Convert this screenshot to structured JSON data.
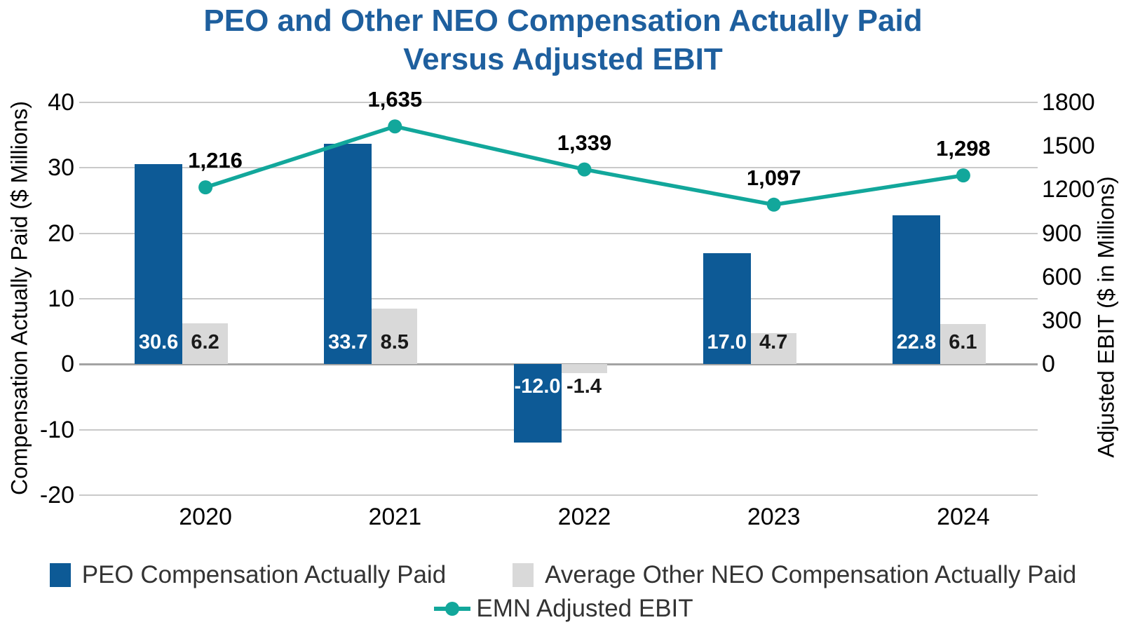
{
  "title": {
    "line1": "PEO and Other NEO Compensation Actually Paid",
    "line2": "Versus Adjusted EBIT"
  },
  "chart_data": {
    "type": "combo-bar-line",
    "categories": [
      "2020",
      "2021",
      "2022",
      "2023",
      "2024"
    ],
    "series": [
      {
        "name": "PEO Compensation Actually Paid",
        "type": "bar",
        "axis": "left",
        "color": "#0D5A96",
        "label_color": "#FFFFFF",
        "values": [
          30.6,
          33.7,
          -12.0,
          17.0,
          22.8
        ],
        "labels": [
          "30.6",
          "33.7",
          "-12.0",
          "17.0",
          "22.8"
        ]
      },
      {
        "name": "Average Other NEO Compensation Actually Paid",
        "type": "bar",
        "axis": "left",
        "color": "#D9D9D9",
        "label_color": "#1A1A1A",
        "values": [
          6.2,
          8.5,
          -1.4,
          4.7,
          6.1
        ],
        "labels": [
          "6.2",
          "8.5",
          "-1.4",
          "4.7",
          "6.1"
        ]
      },
      {
        "name": "EMN Adjusted EBIT",
        "type": "line",
        "axis": "right",
        "color": "#12A79B",
        "values": [
          1216,
          1635,
          1339,
          1097,
          1298
        ],
        "labels": [
          "1,216",
          "1,635",
          "1,339",
          "1,097",
          "1,298"
        ]
      }
    ],
    "left_axis": {
      "label": "Compensation Actually Paid ($ Millions)",
      "tick_values": [
        40,
        30,
        20,
        10,
        0,
        -10,
        -20
      ],
      "ticks": [
        "40",
        "30",
        "20",
        "10",
        "0",
        "-10",
        "-20"
      ],
      "ylim": [
        -20,
        40
      ]
    },
    "right_axis": {
      "label": "Adjusted EBIT ($ in Millions)",
      "tick_values": [
        1800,
        1500,
        1200,
        900,
        600,
        300,
        0
      ],
      "ticks": [
        "1800",
        "1500",
        "1200",
        "900",
        "600",
        "300",
        "0"
      ],
      "ylim": [
        0,
        1800
      ]
    },
    "grid": true,
    "legend_position": "bottom"
  },
  "colors": {
    "title_text": "#1E5F9E",
    "gridline": "#C9C9C9",
    "zero_line": "#A3A3A3",
    "axis_text": "#000000",
    "legend_text": "#333333",
    "background": "#FFFFFF"
  }
}
